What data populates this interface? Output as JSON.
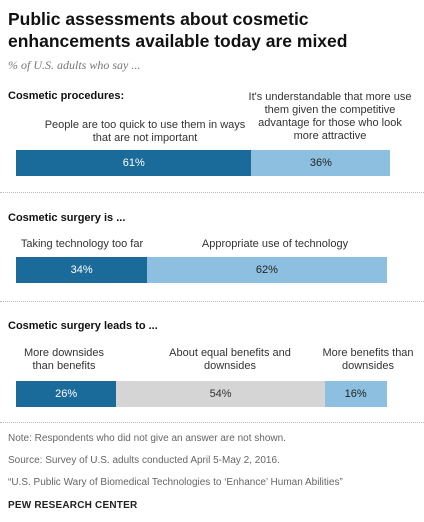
{
  "title": "Public assessments about cosmetic enhancements available today are mixed",
  "subtitle": "% of U.S. adults who say ...",
  "chart_data": [
    {
      "type": "bar",
      "stacked": true,
      "orientation": "horizontal",
      "title": "Cosmetic procedures:",
      "series": [
        {
          "name": "People are too quick to use them in ways that are not important",
          "values": [
            61
          ],
          "label": "61%",
          "color": "#1a6a9a"
        },
        {
          "name": "It's understandable that more use them given the competitive advantage for those who look more attractive",
          "values": [
            36
          ],
          "label": "36%",
          "color": "#8dc0e0"
        }
      ]
    },
    {
      "type": "bar",
      "stacked": true,
      "orientation": "horizontal",
      "title": "Cosmetic surgery is ...",
      "series": [
        {
          "name": "Taking technology too far",
          "values": [
            34
          ],
          "label": "34%",
          "color": "#1a6a9a"
        },
        {
          "name": "Appropriate use of technology",
          "values": [
            62
          ],
          "label": "62%",
          "color": "#8dc0e0"
        }
      ]
    },
    {
      "type": "bar",
      "stacked": true,
      "orientation": "horizontal",
      "title": "Cosmetic surgery leads to ...",
      "series": [
        {
          "name": "More downsides than benefits",
          "values": [
            26
          ],
          "label": "26%",
          "color": "#1a6a9a"
        },
        {
          "name": "About equal benefits and downsides",
          "values": [
            54
          ],
          "label": "54%",
          "color": "#d5d5d5"
        },
        {
          "name": "More benefits than downsides",
          "values": [
            16
          ],
          "label": "16%",
          "color": "#8dc0e0"
        }
      ]
    }
  ],
  "notes": {
    "note": "Note: Respondents who did not give an answer are not shown.",
    "source": "Source: Survey of U.S. adults conducted April 5-May 2, 2016.",
    "report": "“U.S. Public Wary of Biomedical Technologies to ‘Enhance’ Human Abilities”",
    "brand": "PEW RESEARCH CENTER"
  }
}
